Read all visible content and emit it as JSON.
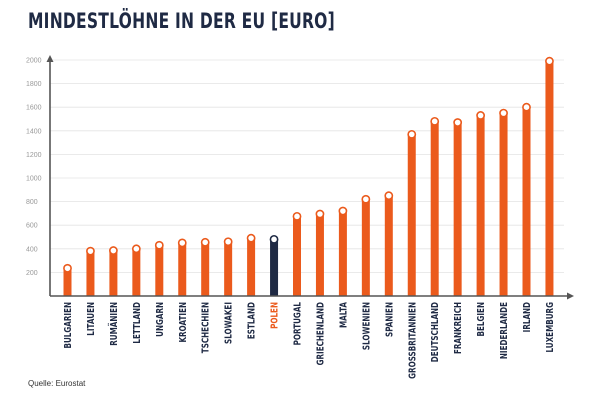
{
  "chart_data": {
    "type": "bar",
    "title": "MINDESTLÖHNE IN DER EU [EURO]",
    "xlabel": "",
    "ylabel": "",
    "ylim": [
      0,
      2000
    ],
    "yticks": [
      200,
      400,
      600,
      800,
      1000,
      1200,
      1400,
      1600,
      1800,
      2000
    ],
    "grid": true,
    "categories": [
      "BULGARIEN",
      "LITAUEN",
      "RUMÄNIEN",
      "LETTLAND",
      "UNGARN",
      "KROATIEN",
      "TSCHECHIEN",
      "SLOWAKEI",
      "ESTLAND",
      "POLEN",
      "PORTUGAL",
      "GRIECHENLAND",
      "MALTA",
      "SLOWENIEN",
      "SPANIEN",
      "GROSSBRITANNIEN",
      "DEUTSCHLAND",
      "FRANKREICH",
      "BELGIEN",
      "NIEDERLANDE",
      "IRLAND",
      "LUXEMBURG"
    ],
    "values": [
      235,
      380,
      385,
      400,
      430,
      450,
      455,
      460,
      490,
      480,
      675,
      695,
      720,
      820,
      850,
      1370,
      1480,
      1470,
      1530,
      1550,
      1600,
      1990
    ],
    "highlight": "POLEN",
    "colors": {
      "bar": "#eb5a1c",
      "highlight": "#1f2a44",
      "axis": "#555555",
      "grid": "#e4e4e4",
      "tick_label": "#999999"
    }
  },
  "source": "Quelle: Eurostat"
}
